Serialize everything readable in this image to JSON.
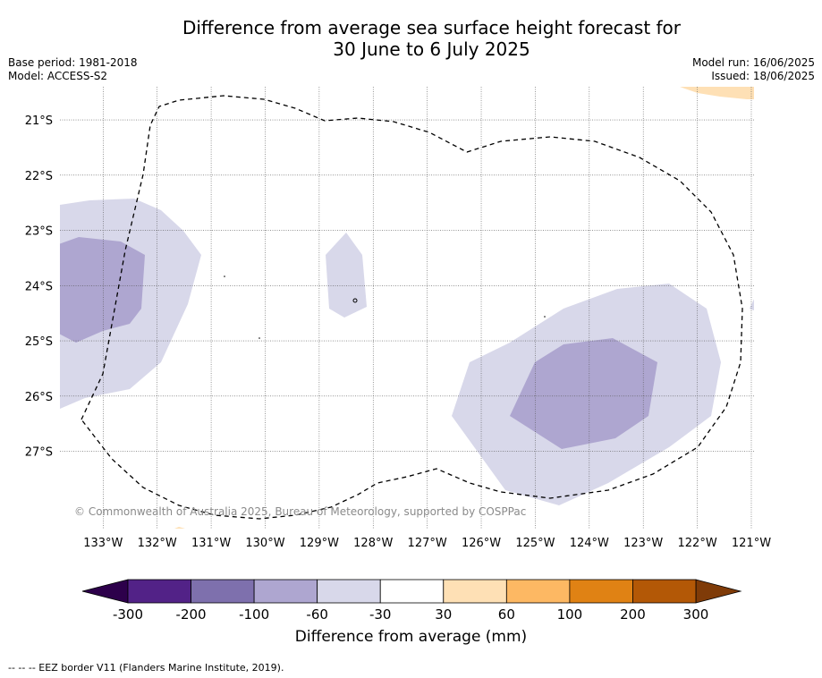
{
  "header": {
    "title_line1": "Difference from average sea surface height forecast for",
    "title_line2": "30 June to 6 July 2025",
    "base_period": "Base period: 1981-2018",
    "model": "Model: ACCESS-S2",
    "model_run": "Model run: 16/06/2025",
    "issued": "Issued: 18/06/2025"
  },
  "map": {
    "lon_range": [
      -133.8,
      -120.95
    ],
    "lat_range": [
      -28.4,
      -20.4
    ],
    "lon_ticks": [
      {
        "value": -133,
        "label": "133°W"
      },
      {
        "value": -132,
        "label": "132°W"
      },
      {
        "value": -131,
        "label": "131°W"
      },
      {
        "value": -130,
        "label": "130°W"
      },
      {
        "value": -129,
        "label": "129°W"
      },
      {
        "value": -128,
        "label": "128°W"
      },
      {
        "value": -127,
        "label": "127°W"
      },
      {
        "value": -126,
        "label": "126°W"
      },
      {
        "value": -125,
        "label": "125°W"
      },
      {
        "value": -124,
        "label": "124°W"
      },
      {
        "value": -123,
        "label": "123°W"
      },
      {
        "value": -122,
        "label": "122°W"
      },
      {
        "value": -121,
        "label": "121°W"
      }
    ],
    "lat_ticks": [
      {
        "value": -21,
        "label": "21°S"
      },
      {
        "value": -22,
        "label": "22°S"
      },
      {
        "value": -23,
        "label": "23°S"
      },
      {
        "value": -24,
        "label": "24°S"
      },
      {
        "value": -25,
        "label": "25°S"
      },
      {
        "value": -26,
        "label": "26°S"
      },
      {
        "value": -27,
        "label": "27°S"
      }
    ],
    "grid": true,
    "copyright": "© Commonwealth of Australia 2025, Bureau of Meteorology, supported by COSPPac"
  },
  "colorbar": {
    "tick_labels": [
      "-300",
      "-200",
      "-100",
      "-60",
      "-30",
      "30",
      "60",
      "100",
      "200",
      "300"
    ],
    "colors": [
      "#522287",
      "#7e70ad",
      "#aea6d0",
      "#d8d8ea",
      "#ffffff",
      "#fee0b5",
      "#fdb863",
      "#e08214",
      "#b35806"
    ],
    "under_color": "#2d004b",
    "over_color": "#7f3b08",
    "label": "Difference from average (mm)"
  },
  "footnote": "--  --  -- EEZ border V11 (Flanders Marine Institute, 2019)."
}
